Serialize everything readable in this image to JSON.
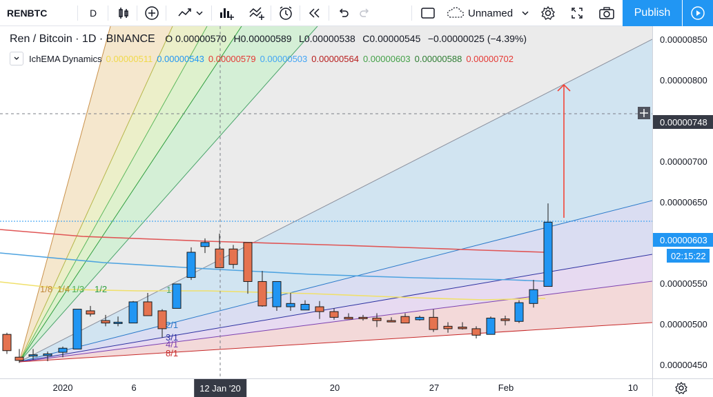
{
  "toolbar": {
    "symbol": "RENBTC",
    "interval": "D",
    "layout_name": "Unnamed",
    "publish_label": "Publish"
  },
  "legend": {
    "pair": "Ren / Bitcoin · 1D · BINANCE",
    "open_prefix": "O",
    "open": "0.00000570",
    "high_prefix": "H",
    "high": "0.00000589",
    "low_prefix": "L",
    "low": "0.00000538",
    "close_prefix": "C",
    "close": "0.00000545",
    "change": "−0.00000025 (−4.39%)"
  },
  "indicator": {
    "name": "IchEMA Dynamics",
    "values": [
      {
        "text": "0.00000511",
        "color": "#f5e663"
      },
      {
        "text": "0.00000543",
        "color": "#2196f3"
      },
      {
        "text": "0.00000579",
        "color": "#e53935"
      },
      {
        "text": "0.00000503",
        "color": "#42a5f5"
      },
      {
        "text": "0.00000564",
        "color": "#b71c1c"
      },
      {
        "text": "0.00000603",
        "color": "#43a047"
      },
      {
        "text": "0.00000588",
        "color": "#2e7d32"
      },
      {
        "text": "0.00000702",
        "color": "#e53935"
      }
    ]
  },
  "price_axis": {
    "labels": [
      "0.00000850",
      "0.00000800",
      "0.00000700",
      "0.00000650",
      "0.00000550",
      "0.00000500",
      "0.00000450"
    ],
    "crosshair_price": "0.00000748",
    "last_price": "0.00000603",
    "countdown": "02:15:22"
  },
  "time_axis": {
    "labels": [
      "2020",
      "6",
      "20",
      "27",
      "Feb",
      "10"
    ],
    "crosshair_date": "12 Jan '20"
  },
  "gann_labels": {
    "top": [
      "1/8",
      "1/4",
      "1/3",
      "1/2",
      "1"
    ],
    "bottom": [
      "2/1",
      "3/1",
      "4/1",
      "8/1"
    ]
  },
  "colors": {
    "accent": "#2196f3",
    "up": "#2196f3",
    "down": "#e57350",
    "last_price_badge": "#2196f3",
    "crosshair_badge": "#363a45"
  }
}
